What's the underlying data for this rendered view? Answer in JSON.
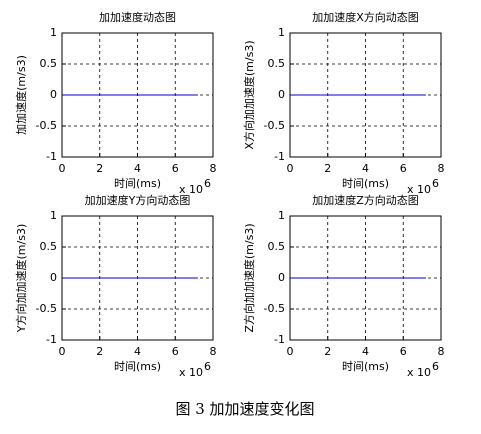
{
  "chart_data": [
    {
      "type": "line",
      "title": "加加速度动态图",
      "xlabel": "时间(ms)",
      "ylabel": "加加速度(m/s3)",
      "x_scale_label": "x 10",
      "x_scale_exponent": 6,
      "xlim": [
        0,
        8
      ],
      "xticks": [
        0,
        2,
        4,
        6,
        8
      ],
      "ylim": [
        -1,
        1
      ],
      "yticks": [
        -1,
        -0.5,
        0,
        0.5,
        1
      ],
      "grid": true,
      "series": [
        {
          "color": "#0000cc",
          "x": [
            0,
            7.2
          ],
          "values": [
            0,
            0
          ]
        }
      ]
    },
    {
      "type": "line",
      "title": "加加速度X方向动态图",
      "xlabel": "时间(ms)",
      "ylabel": "X方向加加速度(m/s3)",
      "x_scale_label": "x 10",
      "x_scale_exponent": 6,
      "xlim": [
        0,
        8
      ],
      "xticks": [
        0,
        2,
        4,
        6,
        8
      ],
      "ylim": [
        -1,
        1
      ],
      "yticks": [
        -1,
        -0.5,
        0,
        0.5,
        1
      ],
      "grid": true,
      "series": [
        {
          "color": "#0000cc",
          "x": [
            0,
            7.2
          ],
          "values": [
            0,
            0
          ]
        }
      ]
    },
    {
      "type": "line",
      "title": "加加速度Y方向动态图",
      "xlabel": "时间(ms)",
      "ylabel": "Y方向加加速度(m/s3)",
      "x_scale_label": "x 10",
      "x_scale_exponent": 6,
      "xlim": [
        0,
        8
      ],
      "xticks": [
        0,
        2,
        4,
        6,
        8
      ],
      "ylim": [
        -1,
        1
      ],
      "yticks": [
        -1,
        -0.5,
        0,
        0.5,
        1
      ],
      "grid": true,
      "series": [
        {
          "color": "#0000cc",
          "x": [
            0,
            7.2
          ],
          "values": [
            0,
            0
          ]
        }
      ]
    },
    {
      "type": "line",
      "title": "加加速度Z方向动态图",
      "xlabel": "时间(ms)",
      "ylabel": "Z方向加加速度(m/s3)",
      "x_scale_label": "x 10",
      "x_scale_exponent": 6,
      "xlim": [
        0,
        8
      ],
      "xticks": [
        0,
        2,
        4,
        6,
        8
      ],
      "ylim": [
        -1,
        1
      ],
      "yticks": [
        -1,
        -0.5,
        0,
        0.5,
        1
      ],
      "grid": true,
      "series": [
        {
          "color": "#0000cc",
          "x": [
            0,
            7.2
          ],
          "values": [
            0,
            0
          ]
        }
      ]
    }
  ],
  "caption": "图 3  加加速度变化图"
}
